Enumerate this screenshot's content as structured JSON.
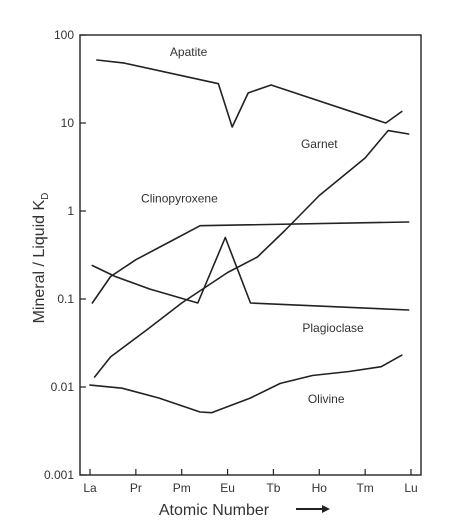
{
  "chart_data": {
    "type": "line",
    "xlabel": "Atomic Number",
    "ylabel": "Mineral / Liquid K",
    "ylabel_subscript": "D",
    "y_scale": "log",
    "ylim": [
      0.001,
      100
    ],
    "y_ticks": [
      "0.001",
      "0.01",
      "0.1",
      "1",
      "10",
      "100"
    ],
    "x_range": [
      57,
      71
    ],
    "x_ticks": [
      {
        "label": "La",
        "x": 57
      },
      {
        "label": "Pr",
        "x": 59
      },
      {
        "label": "Pm",
        "x": 61
      },
      {
        "label": "Eu",
        "x": 63
      },
      {
        "label": "Tb",
        "x": 65
      },
      {
        "label": "Ho",
        "x": 67
      },
      {
        "label": "Tm",
        "x": 69
      },
      {
        "label": "Lu",
        "x": 71
      }
    ],
    "grid": false,
    "series": [
      {
        "name": "Apatite",
        "points": [
          [
            57.3,
            52
          ],
          [
            58.5,
            48
          ],
          [
            62.6,
            28
          ],
          [
            63.2,
            9
          ],
          [
            63.9,
            22
          ],
          [
            64.9,
            27
          ],
          [
            69.9,
            10
          ],
          [
            70.6,
            13.5
          ]
        ]
      },
      {
        "name": "Garnet",
        "points": [
          [
            57.2,
            0.013
          ],
          [
            57.9,
            0.022
          ],
          [
            59.5,
            0.045
          ],
          [
            61.0,
            0.09
          ],
          [
            63.0,
            0.2
          ],
          [
            64.3,
            0.3
          ],
          [
            65.5,
            0.6
          ],
          [
            67.0,
            1.5
          ],
          [
            69.0,
            4
          ],
          [
            70.0,
            8.2
          ],
          [
            70.9,
            7.5
          ]
        ]
      },
      {
        "name": "Clinopyroxene",
        "points": [
          [
            57.1,
            0.09
          ],
          [
            57.9,
            0.18
          ],
          [
            59.0,
            0.28
          ],
          [
            60.5,
            0.45
          ],
          [
            61.8,
            0.68
          ],
          [
            70.9,
            0.75
          ]
        ]
      },
      {
        "name": "Plagioclase",
        "points": [
          [
            57.1,
            0.24
          ],
          [
            58.1,
            0.18
          ],
          [
            59.6,
            0.13
          ],
          [
            61.7,
            0.09
          ],
          [
            62.9,
            0.5
          ],
          [
            64.0,
            0.09
          ],
          [
            70.9,
            0.075
          ]
        ]
      },
      {
        "name": "Olivine",
        "points": [
          [
            57.0,
            0.0105
          ],
          [
            58.4,
            0.0097
          ],
          [
            60.0,
            0.0075
          ],
          [
            61.8,
            0.0052
          ],
          [
            62.3,
            0.0051
          ],
          [
            64.0,
            0.0075
          ],
          [
            65.3,
            0.011
          ],
          [
            66.7,
            0.0135
          ],
          [
            68.3,
            0.015
          ],
          [
            69.7,
            0.017
          ],
          [
            70.6,
            0.023
          ]
        ]
      }
    ],
    "annotations": [
      {
        "text": "Apatite",
        "series": "Apatite",
        "x": 61.3,
        "y": 58
      },
      {
        "text": "Garnet",
        "series": "Garnet",
        "x": 67.0,
        "y": 5.2
      },
      {
        "text": "Clinopyroxene",
        "series": "Clinopyroxene",
        "x": 60.9,
        "y": 1.25
      },
      {
        "text": "Plagioclase",
        "series": "Plagioclase",
        "x": 67.6,
        "y": 0.042
      },
      {
        "text": "Olivine",
        "series": "Olivine",
        "x": 67.3,
        "y": 0.0066
      }
    ]
  }
}
